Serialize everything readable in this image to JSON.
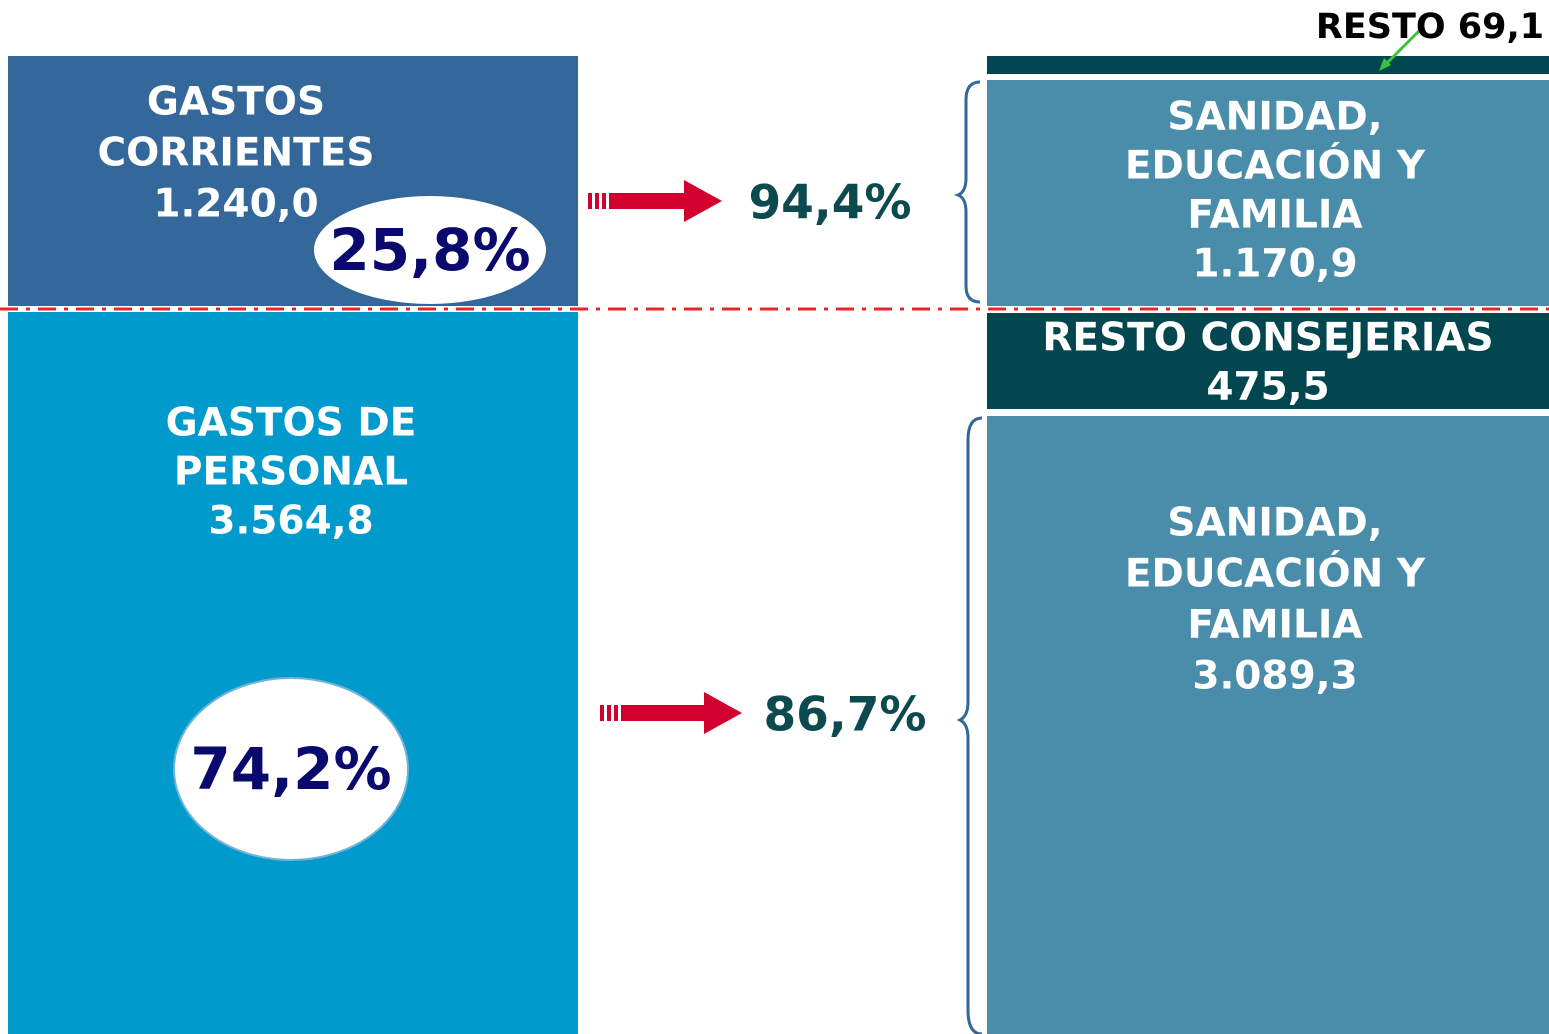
{
  "left_top": {
    "lines": [
      "GASTOS",
      "CORRIENTES",
      "1.240,0"
    ],
    "share": "25,8%"
  },
  "left_bottom": {
    "lines": [
      "GASTOS DE",
      "PERSONAL",
      "3.564,8"
    ],
    "share": "74,2%"
  },
  "arrow_top": {
    "label": "94,4%"
  },
  "arrow_bottom": {
    "label": "86,7%"
  },
  "right_top_note": "RESTO 69,1",
  "right_top": {
    "lines": [
      "SANIDAD,",
      "EDUCACIÓN Y",
      "FAMILIA",
      "1.170,9"
    ]
  },
  "right_middle": {
    "lines": [
      "RESTO CONSEJERIAS",
      "475,5"
    ]
  },
  "right_bottom": {
    "lines": [
      "SANIDAD,",
      "EDUCACIÓN Y",
      "FAMILIA",
      "3.089,3"
    ]
  }
}
